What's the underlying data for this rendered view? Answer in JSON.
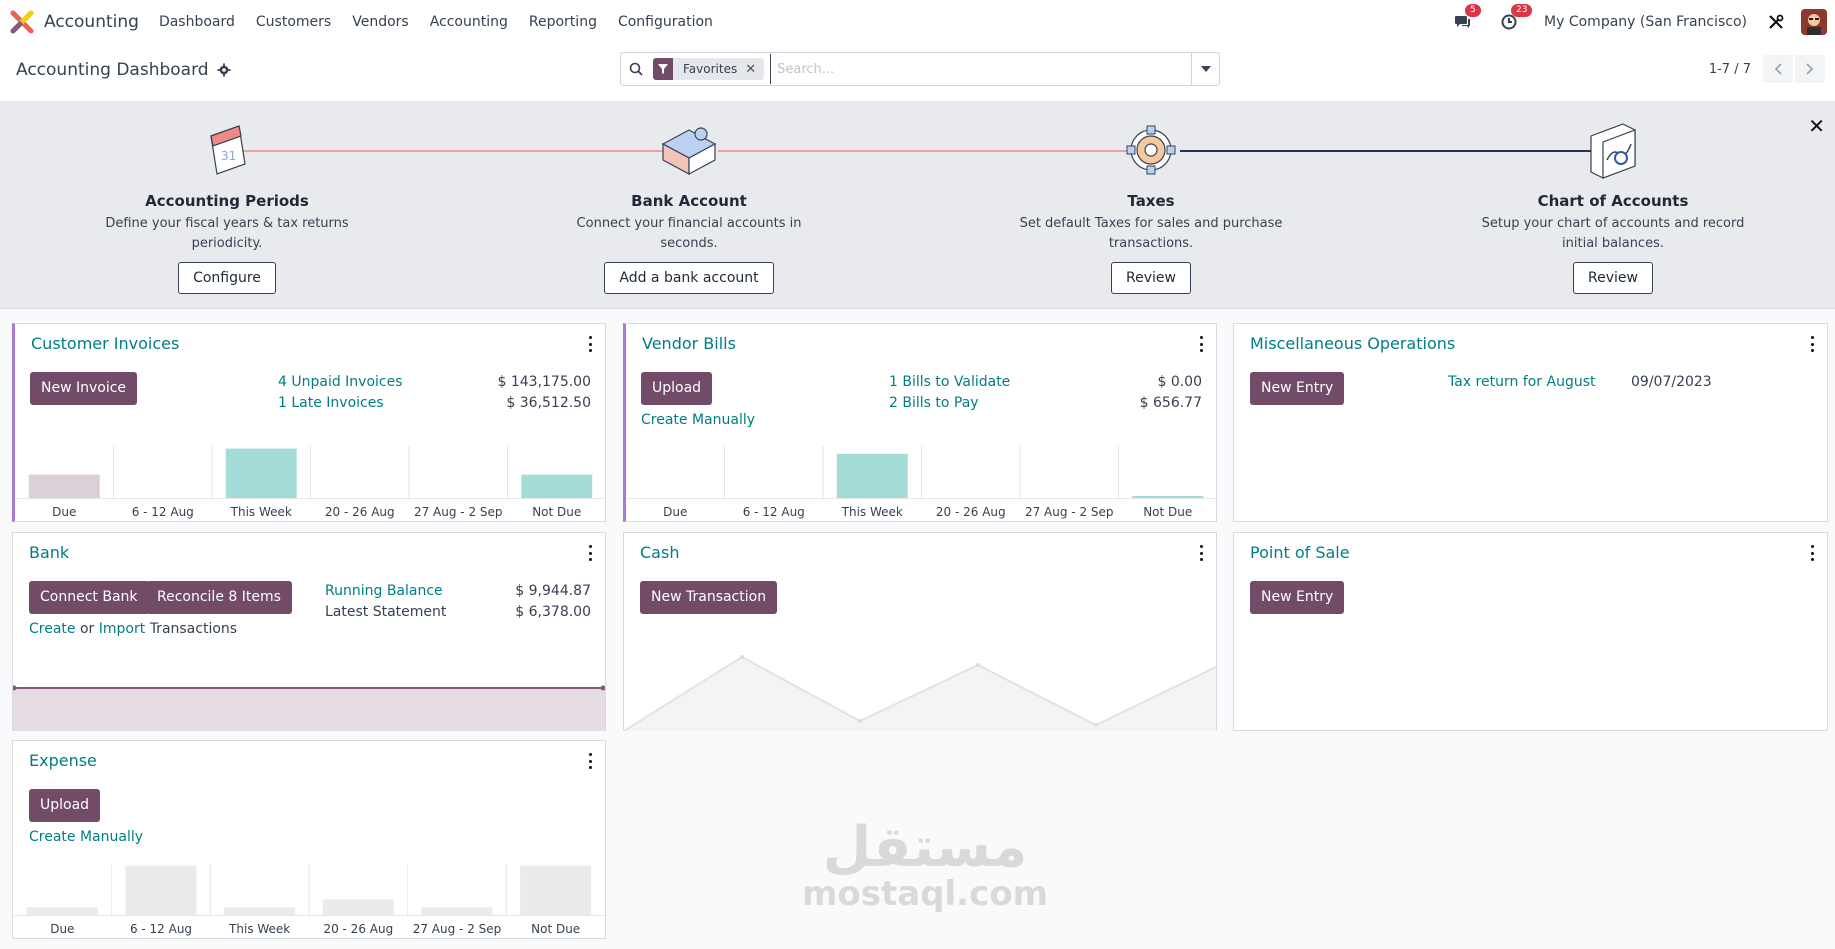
{
  "nav": {
    "app_name": "Accounting",
    "menu": [
      "Dashboard",
      "Customers",
      "Vendors",
      "Accounting",
      "Reporting",
      "Configuration"
    ],
    "messages_count": "5",
    "activities_count": "23",
    "company": "My Company (San Francisco)"
  },
  "control": {
    "title": "Accounting Dashboard",
    "facet": "Favorites",
    "search_placeholder": "Search...",
    "pager": "1-7 / 7"
  },
  "onboarding": {
    "steps": [
      {
        "title": "Accounting Periods",
        "desc": "Define your fiscal years & tax returns periodicity.",
        "button": "Configure"
      },
      {
        "title": "Bank Account",
        "desc": "Connect your financial accounts in seconds.",
        "button": "Add a bank account"
      },
      {
        "title": "Taxes",
        "desc": "Set default Taxes for sales and purchase transactions.",
        "button": "Review"
      },
      {
        "title": "Chart of Accounts",
        "desc": "Setup your chart of accounts and record initial balances.",
        "button": "Review"
      }
    ],
    "line_colors": [
      "#e8a0a0",
      "#2f2d5f"
    ],
    "calendar_day": "31"
  },
  "journals": {
    "customer_invoices": {
      "title": "Customer Invoices",
      "button": "New Invoice",
      "rows": [
        {
          "label": "4 Unpaid Invoices",
          "amount": "$ 143,175.00"
        },
        {
          "label": "1 Late Invoices",
          "amount": "$ 36,512.50"
        }
      ]
    },
    "vendor_bills": {
      "title": "Vendor Bills",
      "button": "Upload",
      "create_link": "Create Manually",
      "rows": [
        {
          "label": "1 Bills to Validate",
          "amount": "$ 0.00"
        },
        {
          "label": "2 Bills to Pay",
          "amount": "$ 656.77"
        }
      ]
    },
    "misc": {
      "title": "Miscellaneous Operations",
      "button": "New Entry",
      "row_label": "Tax return for August",
      "row_date": "09/07/2023"
    },
    "bank": {
      "title": "Bank",
      "button1": "Connect Bank",
      "button2": "Reconcile 8 Items",
      "create": "Create",
      "or": "or",
      "import": "Import",
      "transactions": "Transactions",
      "rows": [
        {
          "label": "Running Balance",
          "amount": "$ 9,944.87"
        },
        {
          "label": "Latest Statement",
          "amount": "$ 6,378.00"
        }
      ]
    },
    "cash": {
      "title": "Cash",
      "button": "New Transaction"
    },
    "pos": {
      "title": "Point of Sale",
      "button": "New Entry"
    },
    "expense": {
      "title": "Expense",
      "button": "Upload",
      "create_link": "Create Manually"
    }
  },
  "chart_data": [
    {
      "type": "bar",
      "title": "",
      "categories": [
        "Due",
        "6 - 12 Aug",
        "This Week",
        "20 - 26 Aug",
        "27 Aug - 2 Sep",
        "Not Due"
      ],
      "values": [
        0.45,
        0,
        0.95,
        0,
        0,
        0.45
      ],
      "colors": [
        "#dcd0d8",
        "#ffffff",
        "#a6dcd8",
        "#ffffff",
        "#ffffff",
        "#a6dcd8"
      ]
    },
    {
      "type": "bar",
      "title": "",
      "categories": [
        "Due",
        "6 - 12 Aug",
        "This Week",
        "20 - 26 Aug",
        "27 Aug - 2 Sep",
        "Not Due"
      ],
      "values": [
        0,
        0,
        0.85,
        0,
        0,
        0.04
      ],
      "colors": [
        "#ffffff",
        "#ffffff",
        "#a6dcd8",
        "#ffffff",
        "#ffffff",
        "#a6dcd8"
      ]
    },
    {
      "type": "bar",
      "title": "",
      "categories": [
        "Due",
        "6 - 12 Aug",
        "This Week",
        "20 - 26 Aug",
        "27 Aug - 2 Sep",
        "Not Due"
      ],
      "values": [
        0.15,
        0.95,
        0.15,
        0.3,
        0.15,
        0.95
      ],
      "colors": [
        "#ebebeb",
        "#ebebeb",
        "#ebebeb",
        "#ebebeb",
        "#ebebeb",
        "#ebebeb"
      ]
    }
  ]
}
